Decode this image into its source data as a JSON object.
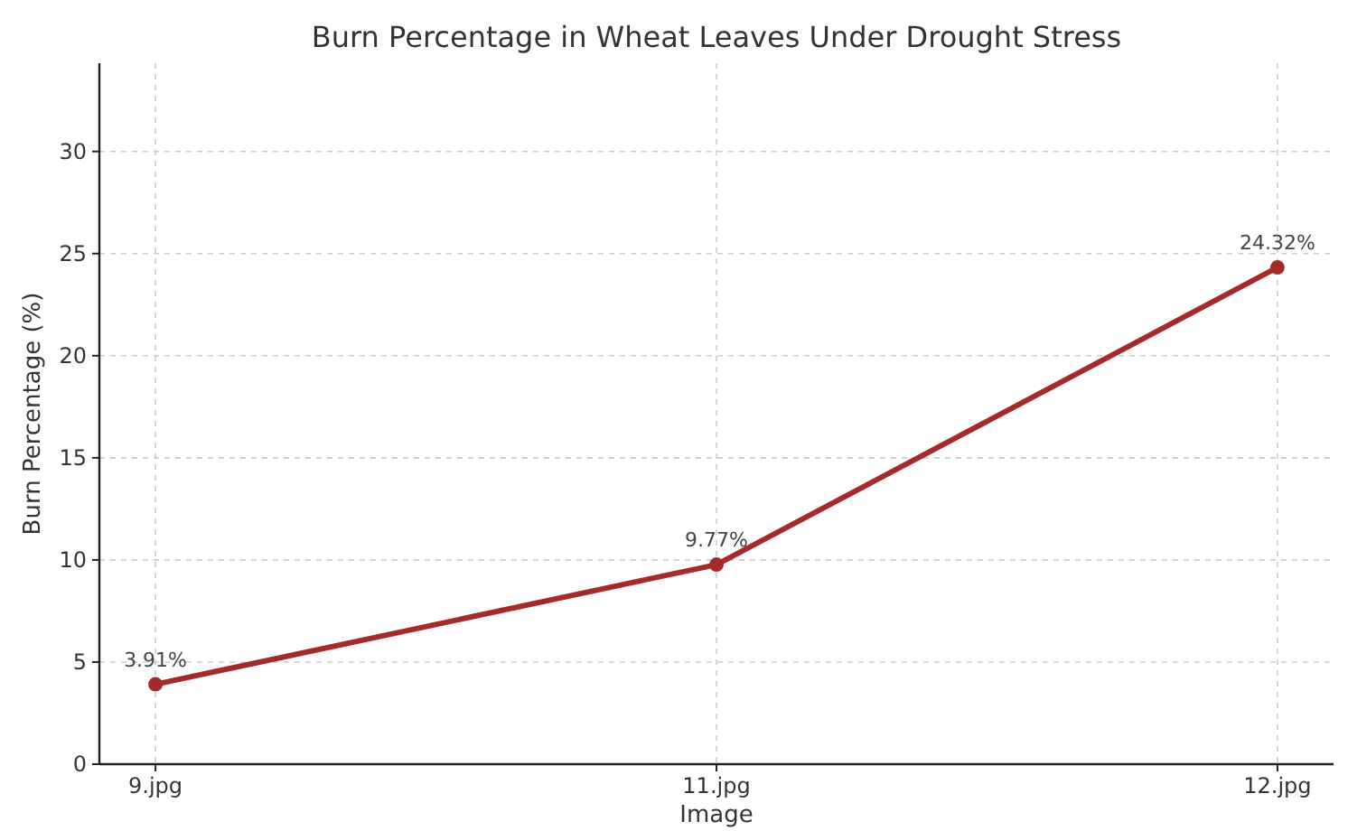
{
  "chart_data": {
    "type": "line",
    "title": "Burn Percentage in Wheat Leaves Under Drought Stress",
    "xlabel": "Image",
    "ylabel": "Burn Percentage (%)",
    "categories": [
      "9.jpg",
      "11.jpg",
      "12.jpg"
    ],
    "series": [
      {
        "color": "#a52a2a",
        "values": [
          3.91,
          9.77,
          24.32
        ],
        "value_labels": [
          "3.91%",
          "9.77%",
          "24.32%"
        ]
      }
    ],
    "ylim": [
      0,
      34.32
    ],
    "yticks": [
      0,
      5,
      10,
      15,
      20,
      25,
      30
    ],
    "grid": true,
    "marker": "circle",
    "line_style": "solid"
  }
}
